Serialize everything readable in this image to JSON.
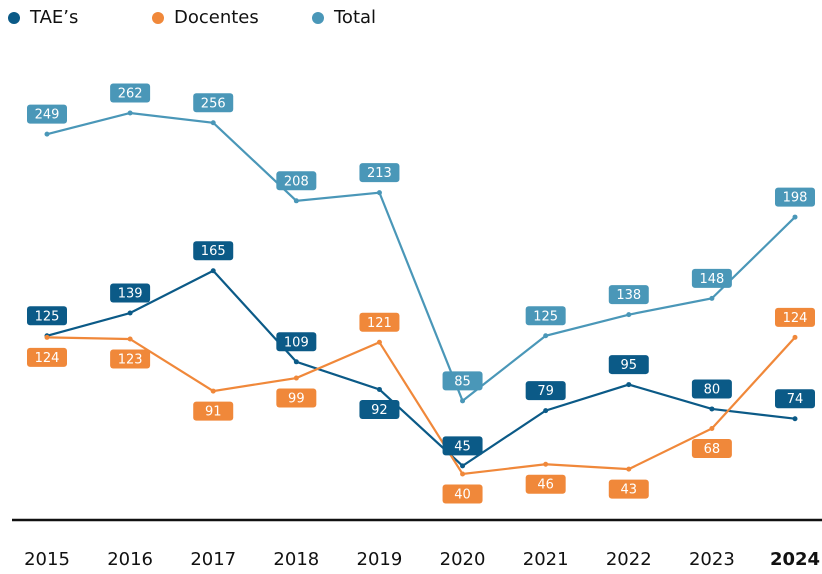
{
  "chart_data": {
    "type": "line",
    "categories": [
      "2015",
      "2016",
      "2017",
      "2018",
      "2019",
      "2020",
      "2021",
      "2022",
      "2023",
      "2024"
    ],
    "series": [
      {
        "name": "TAE’s",
        "color": "#0b5a87",
        "values": [
          125,
          139,
          165,
          109,
          92,
          45,
          79,
          95,
          80,
          74
        ]
      },
      {
        "name": "Docentes",
        "color": "#f0883a",
        "values": [
          124,
          123,
          91,
          99,
          121,
          40,
          46,
          43,
          68,
          124
        ]
      },
      {
        "name": "Total",
        "color": "#4a97b8",
        "values": [
          249,
          262,
          256,
          208,
          213,
          85,
          125,
          138,
          148,
          198
        ]
      }
    ],
    "bold_last_category": true,
    "legend": "top-left"
  }
}
